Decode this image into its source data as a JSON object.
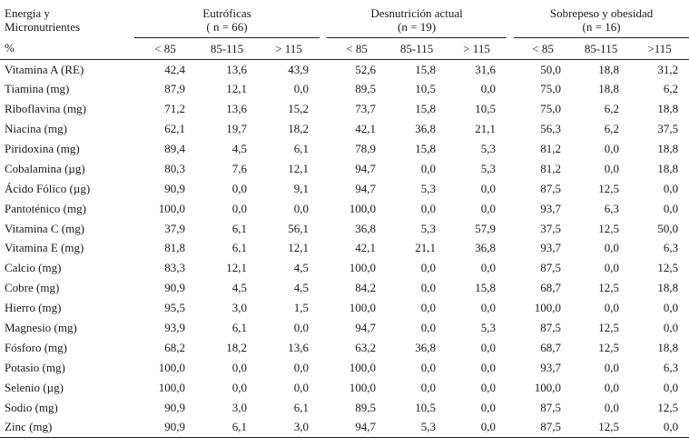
{
  "header": {
    "corner_label_line1": "Energía y",
    "corner_label_line2": "Micronutrientes",
    "percent_label": "%",
    "groups": [
      {
        "title": "Eutróficas",
        "n": "( n = 66)"
      },
      {
        "title": "Desnutrición actual",
        "n": "(n = 19)"
      },
      {
        "title": "Sobrepeso y obesidad",
        "n": "(n = 16)"
      }
    ],
    "subcols": [
      [
        "< 85",
        "85-115",
        "> 115"
      ],
      [
        "< 85",
        "85-115",
        "> 115"
      ],
      [
        "< 85",
        "85-115",
        ">115"
      ]
    ]
  },
  "rows": [
    {
      "label": "Vitamina A (RE)",
      "values": [
        "42,4",
        "13,6",
        "43,9",
        "52,6",
        "15,8",
        "31,6",
        "50,0",
        "18,8",
        "31,2"
      ]
    },
    {
      "label": "Tiamina (mg)",
      "values": [
        "87,9",
        "12,1",
        "0,0",
        "89,5",
        "10,5",
        "0,0",
        "75,0",
        "18,8",
        "6,2"
      ]
    },
    {
      "label": "Riboflavina (mg)",
      "values": [
        "71,2",
        "13,6",
        "15,2",
        "73,7",
        "15,8",
        "10,5",
        "75,0",
        "6,2",
        "18,8"
      ]
    },
    {
      "label": "Niacina (mg)",
      "values": [
        "62,1",
        "19,7",
        "18,2",
        "42,1",
        "36,8",
        "21,1",
        "56,3",
        "6,2",
        "37,5"
      ]
    },
    {
      "label": "Piridoxina (mg)",
      "values": [
        "89,4",
        "4,5",
        "6,1",
        "78,9",
        "15,8",
        "5,3",
        "81,2",
        "0,0",
        "18,8"
      ]
    },
    {
      "label": "Cobalamina (µg)",
      "values": [
        "80,3",
        "7,6",
        "12,1",
        "94,7",
        "0,0",
        "5,3",
        "81,2",
        "0,0",
        "18,8"
      ]
    },
    {
      "label": "Ácido Fólico (µg)",
      "values": [
        "90,9",
        "0,0",
        "9,1",
        "94,7",
        "5,3",
        "0,0",
        "87,5",
        "12,5",
        "0,0"
      ]
    },
    {
      "label": "Pantoténico (mg)",
      "values": [
        "100,0",
        "0,0",
        "0,0",
        "100,0",
        "0,0",
        "0,0",
        "93,7",
        "6,3",
        "0,0"
      ]
    },
    {
      "label": "Vitamina C (mg)",
      "values": [
        "37,9",
        "6,1",
        "56,1",
        "36,8",
        "5,3",
        "57,9",
        "37,5",
        "12,5",
        "50,0"
      ]
    },
    {
      "label": "Vitamina E (mg)",
      "values": [
        "81,8",
        "6,1",
        "12,1",
        "42,1",
        "21,1",
        "36,8",
        "93,7",
        "0,0",
        "6,3"
      ]
    },
    {
      "label": "Calcio (mg)",
      "values": [
        "83,3",
        "12,1",
        "4,5",
        "100,0",
        "0,0",
        "0,0",
        "87,5",
        "0,0",
        "12,5"
      ]
    },
    {
      "label": "Cobre (mg)",
      "values": [
        "90,9",
        "4,5",
        "4,5",
        "84,2",
        "0,0",
        "15,8",
        "68,7",
        "12,5",
        "18,8"
      ]
    },
    {
      "label": "Hierro (mg)",
      "values": [
        "95,5",
        "3,0",
        "1,5",
        "100,0",
        "0,0",
        "0,0",
        "100,0",
        "0,0",
        "0,0"
      ]
    },
    {
      "label": "Magnesio (mg)",
      "values": [
        "93,9",
        "6,1",
        "0,0",
        "94,7",
        "0,0",
        "5,3",
        "87,5",
        "12,5",
        "0,0"
      ]
    },
    {
      "label": "Fósforo (mg)",
      "values": [
        "68,2",
        "18,2",
        "13,6",
        "63,2",
        "36,8",
        "0,0",
        "68,7",
        "12,5",
        "18,8"
      ]
    },
    {
      "label": "Potasio (mg)",
      "values": [
        "100,0",
        "0,0",
        "0,0",
        "100,0",
        "0,0",
        "0,0",
        "93,7",
        "0,0",
        "6,3"
      ]
    },
    {
      "label": "Selenio (µg)",
      "values": [
        "100,0",
        "0,0",
        "0,0",
        "100,0",
        "0,0",
        "0,0",
        "100,0",
        "0,0",
        "0,0"
      ]
    },
    {
      "label": "Sodio (mg)",
      "values": [
        "90,9",
        "3,0",
        "6,1",
        "89,5",
        "10,5",
        "0,0",
        "87,5",
        "0,0",
        "12,5"
      ]
    },
    {
      "label": "Zinc (mg)",
      "values": [
        "90,9",
        "6,1",
        "3,0",
        "94,7",
        "5,3",
        "0,0",
        "87,5",
        "12,5",
        "0,0"
      ]
    }
  ]
}
